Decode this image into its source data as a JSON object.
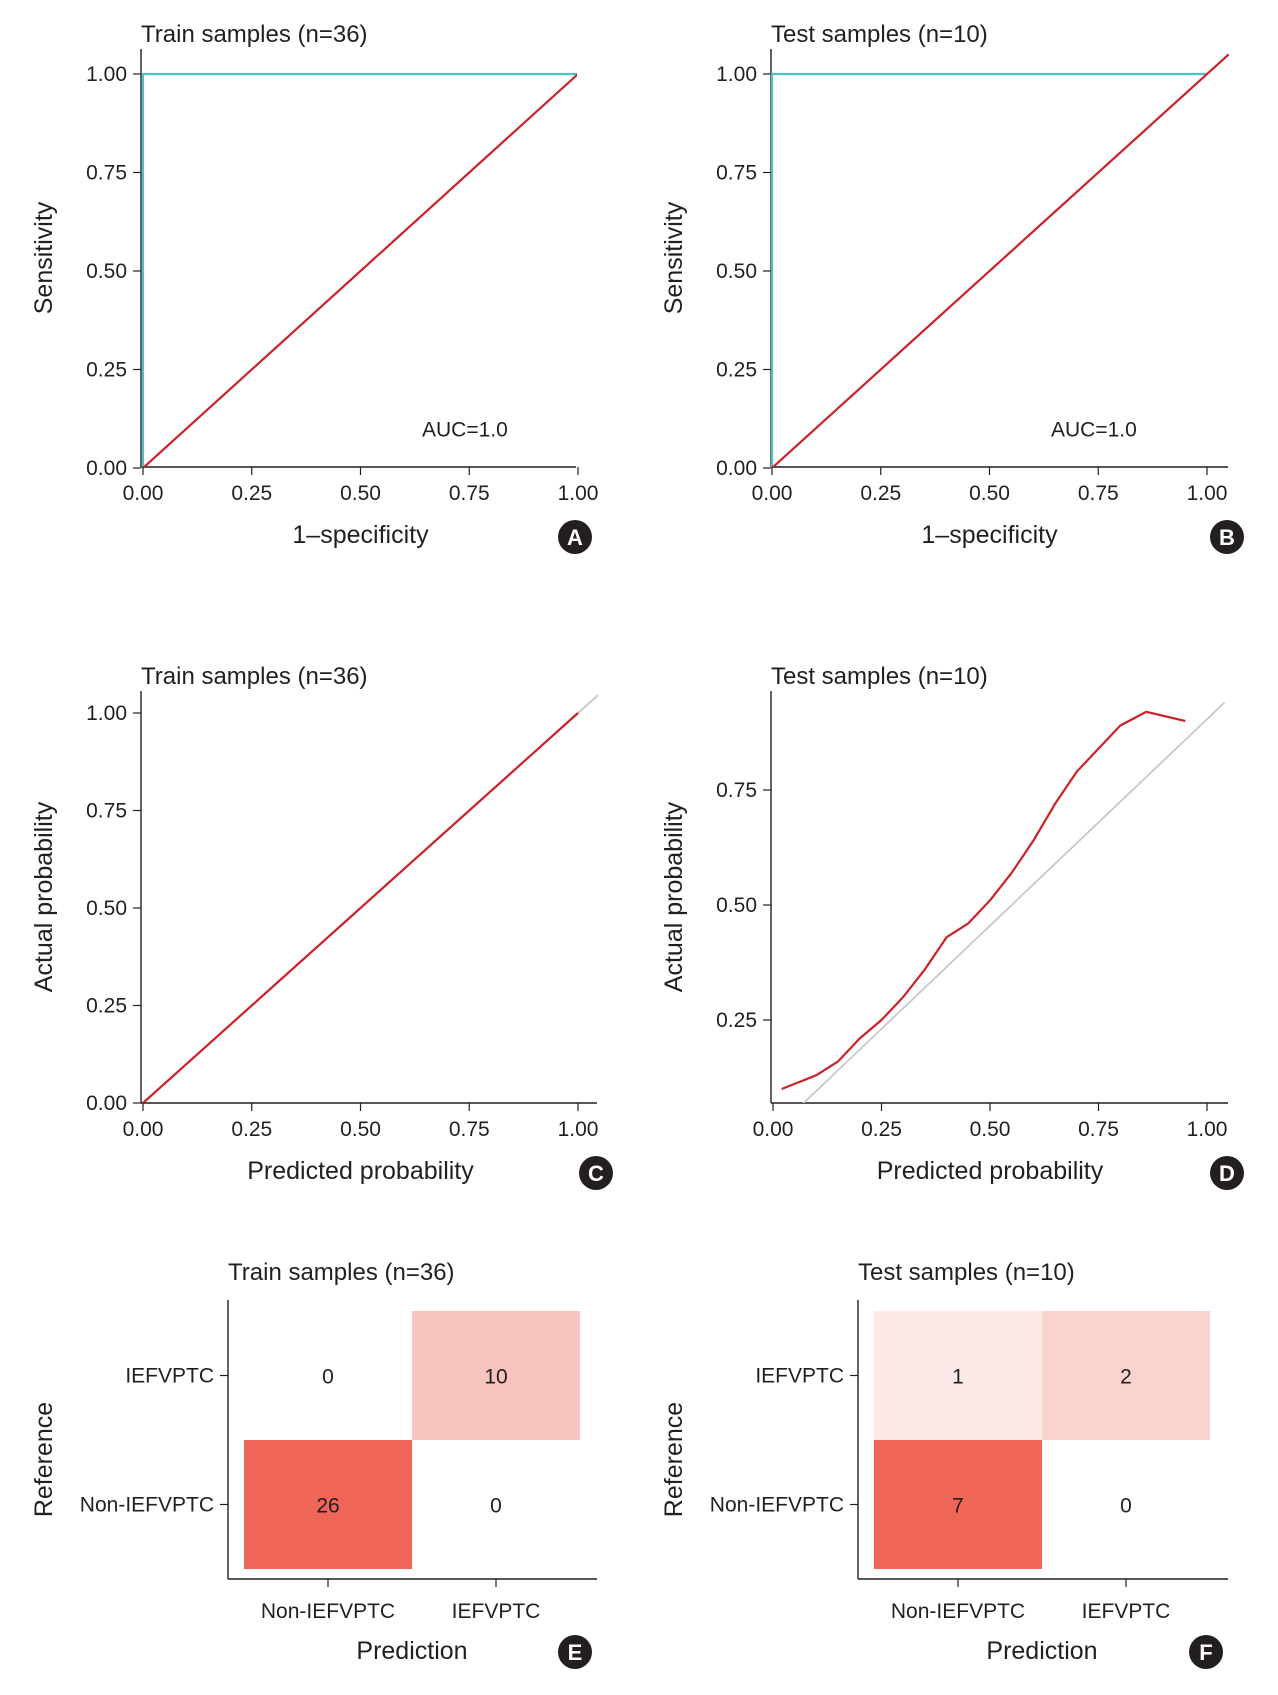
{
  "chart_data": [
    {
      "id": "A",
      "type": "line",
      "title": "Train samples (n=36)",
      "xlabel": "1–specificity",
      "ylabel": "Sensitivity",
      "xlim": [
        0,
        1
      ],
      "ylim": [
        0,
        1
      ],
      "xticks": [
        "0.00",
        "0.25",
        "0.50",
        "0.75",
        "1.00"
      ],
      "yticks": [
        "0.00",
        "0.25",
        "0.50",
        "0.75",
        "1.00"
      ],
      "annotation": "AUC=1.0",
      "panel_label": "A",
      "series": [
        {
          "role": "roc",
          "color": "#4fc1c6",
          "x": [
            0,
            0,
            1
          ],
          "y": [
            0,
            1,
            1
          ]
        },
        {
          "role": "diagonal",
          "color": "#cc2127",
          "x": [
            0,
            1.05
          ],
          "y": [
            0,
            1.05
          ]
        }
      ]
    },
    {
      "id": "B",
      "type": "line",
      "title": "Test samples (n=10)",
      "xlabel": "1–specificity",
      "ylabel": "Sensitivity",
      "xlim": [
        0,
        1
      ],
      "ylim": [
        0,
        1
      ],
      "xticks": [
        "0.00",
        "0.25",
        "0.50",
        "0.75",
        "1.00"
      ],
      "yticks": [
        "0.00",
        "0.25",
        "0.50",
        "0.75",
        "1.00"
      ],
      "annotation": "AUC=1.0",
      "panel_label": "B",
      "series": [
        {
          "role": "roc",
          "color": "#4fc1c6",
          "x": [
            0,
            0,
            1
          ],
          "y": [
            0,
            1,
            1
          ]
        },
        {
          "role": "diagonal",
          "color": "#cc2127",
          "x": [
            0,
            1.05
          ],
          "y": [
            0,
            1.05
          ]
        }
      ]
    },
    {
      "id": "C",
      "type": "line",
      "title": "Train samples (n=36)",
      "xlabel": "Predicted probability",
      "ylabel": "Actual probability",
      "xlim": [
        0,
        1
      ],
      "ylim": [
        0,
        1
      ],
      "xticks": [
        "0.00",
        "0.25",
        "0.50",
        "0.75",
        "1.00"
      ],
      "yticks": [
        "0.00",
        "0.25",
        "0.50",
        "0.75",
        "1.00"
      ],
      "panel_label": "C",
      "series": [
        {
          "role": "reference",
          "color": "#c8c8c8",
          "x": [
            0,
            1.05
          ],
          "y": [
            0,
            1.05
          ]
        },
        {
          "role": "calibration",
          "color": "#cc2127",
          "x": [
            0,
            1
          ],
          "y": [
            0,
            1
          ]
        }
      ]
    },
    {
      "id": "D",
      "type": "line",
      "title": "Test samples (n=10)",
      "xlabel": "Predicted probability",
      "ylabel": "Actual probability",
      "xlim": [
        0,
        1
      ],
      "ylim": [
        0.06,
        0.94
      ],
      "xticks": [
        "0.00",
        "0.25",
        "0.50",
        "0.75",
        "1.00"
      ],
      "yticks": [
        "0.25",
        "0.50",
        "0.75"
      ],
      "panel_label": "D",
      "series": [
        {
          "role": "reference",
          "color": "#c8c8c8",
          "x": [
            0.06,
            1.04
          ],
          "y": [
            0.06,
            0.94
          ]
        },
        {
          "role": "calibration",
          "color": "#cc2127",
          "x": [
            0.02,
            0.06,
            0.1,
            0.15,
            0.2,
            0.25,
            0.3,
            0.35,
            0.4,
            0.45,
            0.5,
            0.55,
            0.6,
            0.65,
            0.7,
            0.75,
            0.8,
            0.86,
            0.95
          ],
          "y": [
            0.1,
            0.115,
            0.13,
            0.16,
            0.21,
            0.25,
            0.3,
            0.36,
            0.43,
            0.46,
            0.51,
            0.57,
            0.64,
            0.72,
            0.79,
            0.84,
            0.89,
            0.92,
            0.9
          ]
        }
      ]
    },
    {
      "id": "E",
      "type": "heatmap",
      "title": "Train samples (n=36)",
      "xlabel": "Prediction",
      "ylabel": "Reference",
      "columns": [
        "Non-IEFVPTC",
        "IEFVPTC"
      ],
      "rows": [
        "IEFVPTC",
        "Non-IEFVPTC"
      ],
      "values": [
        [
          0,
          10
        ],
        [
          26,
          0
        ]
      ],
      "labels": [
        [
          "0",
          "10"
        ],
        [
          "26",
          "0"
        ]
      ],
      "panel_label": "E"
    },
    {
      "id": "F",
      "type": "heatmap",
      "title": "Test samples (n=10)",
      "xlabel": "Prediction",
      "ylabel": "Reference",
      "columns": [
        "Non-IEFVPTC",
        "IEFVPTC"
      ],
      "rows": [
        "IEFVPTC",
        "Non-IEFVPTC"
      ],
      "values": [
        [
          1,
          2
        ],
        [
          7,
          0
        ]
      ],
      "labels": [
        [
          "1",
          "2"
        ],
        [
          "7",
          "0"
        ]
      ],
      "panel_label": "F"
    }
  ]
}
